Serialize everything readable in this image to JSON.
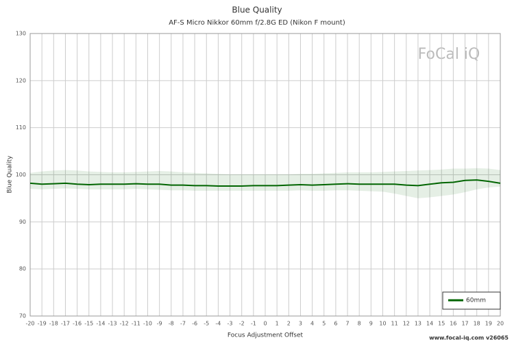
{
  "chart_data": {
    "type": "line",
    "title": "Blue Quality",
    "subtitle": "AF-S Micro Nikkor 60mm f/2.8G ED (Nikon F mount)",
    "x_label": "Focus Adjustment Offset",
    "y_label": "Blue Quality",
    "watermark": "FoCal iQ",
    "footer": "www.focal-iq.com  v26065",
    "x": [
      -20,
      -19,
      -18,
      -17,
      -16,
      -15,
      -14,
      -13,
      -12,
      -11,
      -10,
      -9,
      -8,
      -7,
      -6,
      -5,
      -4,
      -3,
      -2,
      -1,
      0,
      1,
      2,
      3,
      4,
      5,
      6,
      7,
      8,
      9,
      10,
      11,
      12,
      13,
      14,
      15,
      16,
      17,
      18,
      19,
      20
    ],
    "series": [
      {
        "name": "60mm",
        "color": "#006400",
        "values": [
          98.2,
          98.0,
          98.1,
          98.2,
          98.0,
          97.9,
          98.0,
          98.0,
          98.0,
          98.1,
          98.0,
          98.0,
          97.8,
          97.8,
          97.7,
          97.7,
          97.6,
          97.6,
          97.6,
          97.7,
          97.7,
          97.7,
          97.8,
          97.9,
          97.8,
          97.9,
          98.0,
          98.1,
          98.0,
          98.0,
          98.0,
          98.0,
          97.8,
          97.7,
          98.0,
          98.3,
          98.4,
          98.8,
          98.9,
          98.6,
          98.2
        ],
        "band_upper": [
          100.4,
          100.7,
          100.9,
          101.0,
          100.9,
          100.7,
          100.6,
          100.5,
          100.5,
          100.6,
          100.7,
          100.8,
          100.7,
          100.5,
          100.4,
          100.3,
          100.2,
          100.1,
          100.1,
          100.1,
          100.1,
          100.1,
          100.1,
          100.2,
          100.2,
          100.3,
          100.4,
          100.5,
          100.5,
          100.5,
          100.6,
          100.7,
          100.8,
          100.9,
          101.0,
          101.1,
          101.3,
          101.3,
          101.4,
          101.3,
          101.0
        ],
        "band_lower": [
          97.0,
          96.9,
          97.0,
          97.1,
          97.0,
          96.9,
          96.9,
          96.9,
          96.9,
          97.0,
          96.9,
          96.8,
          96.7,
          96.7,
          96.6,
          96.6,
          96.6,
          96.6,
          96.6,
          96.6,
          96.6,
          96.6,
          96.6,
          96.7,
          96.6,
          96.6,
          96.7,
          96.7,
          96.6,
          96.5,
          96.4,
          96.0,
          95.5,
          95.0,
          95.2,
          95.5,
          95.8,
          96.3,
          96.9,
          97.3,
          97.5
        ]
      }
    ],
    "xlim": [
      -20,
      20
    ],
    "xticks": [
      -20,
      -19,
      -18,
      -17,
      -16,
      -15,
      -14,
      -13,
      -12,
      -11,
      -10,
      -9,
      -8,
      -7,
      -6,
      -5,
      -4,
      -3,
      -2,
      -1,
      0,
      1,
      2,
      3,
      4,
      5,
      6,
      7,
      8,
      9,
      10,
      11,
      12,
      13,
      14,
      15,
      16,
      17,
      18,
      19,
      20
    ],
    "ylim": [
      70,
      130
    ],
    "yticks": [
      70,
      80,
      90,
      100,
      110,
      120,
      130
    ],
    "grid": true,
    "legend": "bottom-right"
  }
}
